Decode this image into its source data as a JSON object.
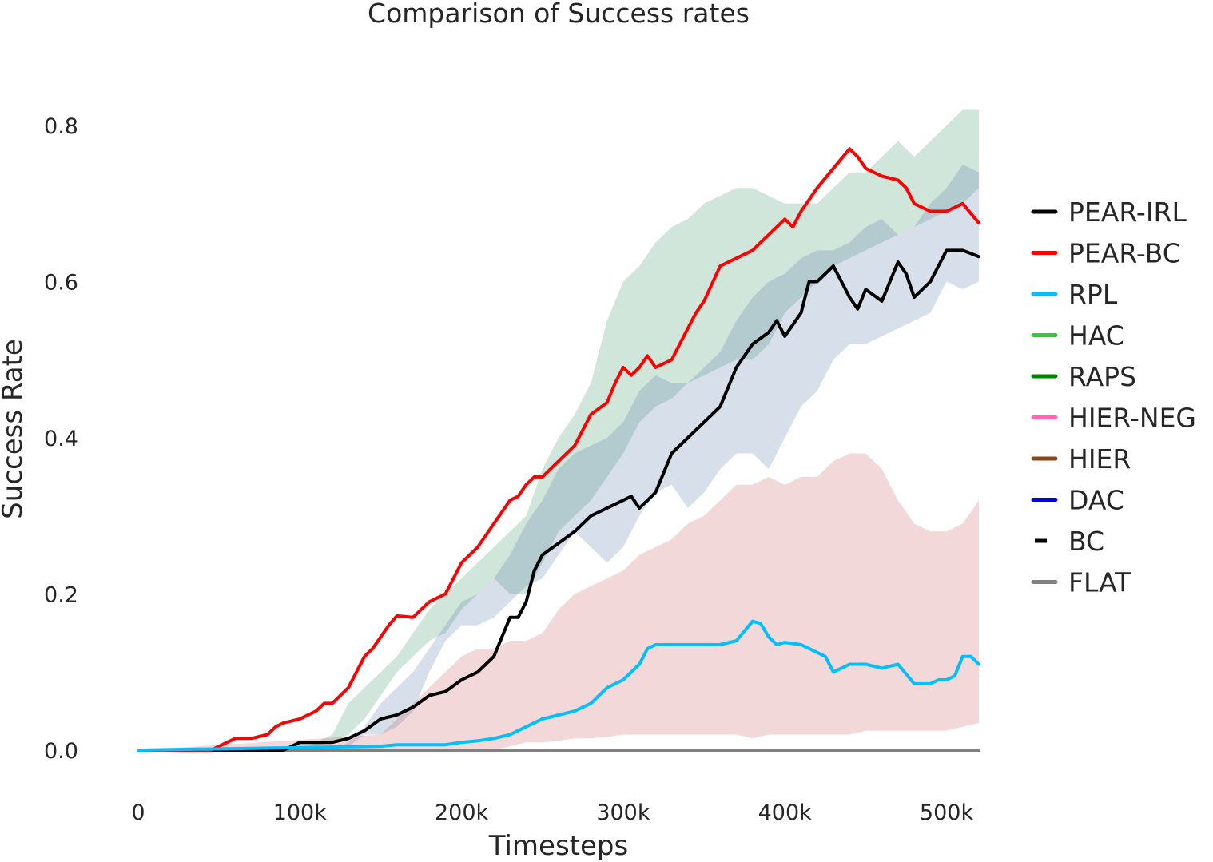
{
  "chart_data": {
    "type": "line",
    "title": "Comparison of Success rates",
    "xlabel": "Timesteps",
    "ylabel": "Success Rate",
    "xlim": [
      0,
      520000
    ],
    "ylim": [
      0,
      0.8
    ],
    "xticks": [
      0,
      100000,
      200000,
      300000,
      400000,
      500000
    ],
    "xtick_labels": [
      "0",
      "100k",
      "200k",
      "300k",
      "400k",
      "500k"
    ],
    "yticks": [
      0,
      0.2,
      0.4,
      0.6,
      0.8
    ],
    "ytick_labels": [
      "0.0",
      "0.2",
      "0.4",
      "0.6",
      "0.8"
    ],
    "grid": false,
    "legend_position": "right",
    "series": [
      {
        "name": "PEAR-IRL",
        "color": "#000000",
        "style": "solid",
        "x": [
          0,
          90000,
          100000,
          120000,
          130000,
          140000,
          150000,
          160000,
          170000,
          180000,
          190000,
          200000,
          210000,
          220000,
          230000,
          235000,
          240000,
          245000,
          250000,
          260000,
          270000,
          280000,
          290000,
          300000,
          305000,
          310000,
          320000,
          330000,
          340000,
          350000,
          360000,
          370000,
          380000,
          390000,
          395000,
          400000,
          410000,
          415000,
          420000,
          425000,
          430000,
          440000,
          445000,
          450000,
          460000,
          470000,
          475000,
          480000,
          490000,
          500000,
          510000,
          520000
        ],
        "y": [
          0,
          0,
          0.01,
          0.01,
          0.015,
          0.025,
          0.04,
          0.045,
          0.055,
          0.07,
          0.075,
          0.09,
          0.1,
          0.12,
          0.17,
          0.17,
          0.19,
          0.23,
          0.25,
          0.265,
          0.28,
          0.3,
          0.31,
          0.32,
          0.325,
          0.31,
          0.33,
          0.38,
          0.4,
          0.42,
          0.44,
          0.49,
          0.52,
          0.535,
          0.55,
          0.53,
          0.56,
          0.6,
          0.6,
          0.61,
          0.62,
          0.58,
          0.565,
          0.59,
          0.575,
          0.625,
          0.61,
          0.58,
          0.6,
          0.64,
          0.64,
          0.632
        ],
        "band_low": [
          0,
          0,
          0,
          0,
          0.005,
          0.02,
          0.02,
          0.03,
          0.05,
          0.1,
          0.14,
          0.16,
          0.16,
          0.17,
          0.18,
          0.2,
          0.22,
          0.22,
          0.24,
          0.26,
          0.29,
          0.25,
          0.23,
          0.25,
          0.26,
          0.3,
          0.34,
          0.34,
          0.3,
          0.33,
          0.34,
          0.38,
          0.38,
          0.36,
          0.38,
          0.44,
          0.46,
          0.46,
          0.5,
          0.52,
          0.51,
          0.51,
          0.53,
          0.52,
          0.54,
          0.55,
          0.56,
          0.55,
          0.56,
          0.6,
          0.59,
          0.6
        ],
        "band_high": [
          0,
          0,
          0.01,
          0.02,
          0.03,
          0.04,
          0.06,
          0.08,
          0.1,
          0.13,
          0.16,
          0.19,
          0.2,
          0.2,
          0.25,
          0.29,
          0.3,
          0.31,
          0.34,
          0.37,
          0.38,
          0.39,
          0.4,
          0.42,
          0.45,
          0.48,
          0.48,
          0.47,
          0.47,
          0.48,
          0.5,
          0.55,
          0.58,
          0.6,
          0.6,
          0.62,
          0.64,
          0.65,
          0.63,
          0.65,
          0.65,
          0.65,
          0.66,
          0.67,
          0.68,
          0.66,
          0.66,
          0.68,
          0.7,
          0.73,
          0.75,
          0.74
        ]
      },
      {
        "name": "PEAR-BC",
        "color": "#ff0000",
        "style": "solid",
        "x": [
          0,
          45000,
          55000,
          60000,
          70000,
          80000,
          85000,
          90000,
          100000,
          110000,
          115000,
          120000,
          130000,
          140000,
          145000,
          150000,
          155000,
          160000,
          170000,
          175000,
          180000,
          190000,
          195000,
          200000,
          210000,
          220000,
          230000,
          235000,
          240000,
          245000,
          250000,
          260000,
          265000,
          270000,
          280000,
          290000,
          295000,
          300000,
          305000,
          310000,
          315000,
          320000,
          330000,
          335000,
          340000,
          345000,
          350000,
          360000,
          370000,
          380000,
          385000,
          390000,
          400000,
          405000,
          410000,
          420000,
          430000,
          440000,
          445000,
          450000,
          460000,
          470000,
          475000,
          480000,
          490000,
          500000,
          510000,
          520000
        ],
        "y": [
          0,
          0,
          0.01,
          0.015,
          0.015,
          0.02,
          0.03,
          0.035,
          0.04,
          0.05,
          0.06,
          0.06,
          0.08,
          0.12,
          0.13,
          0.145,
          0.16,
          0.172,
          0.17,
          0.18,
          0.19,
          0.2,
          0.22,
          0.24,
          0.26,
          0.29,
          0.32,
          0.325,
          0.34,
          0.35,
          0.35,
          0.37,
          0.38,
          0.39,
          0.43,
          0.445,
          0.47,
          0.49,
          0.48,
          0.49,
          0.505,
          0.49,
          0.5,
          0.52,
          0.54,
          0.56,
          0.575,
          0.62,
          0.63,
          0.64,
          0.65,
          0.66,
          0.68,
          0.67,
          0.69,
          0.72,
          0.745,
          0.77,
          0.76,
          0.745,
          0.735,
          0.73,
          0.72,
          0.7,
          0.69,
          0.69,
          0.7,
          0.675
        ],
        "band_low": [
          0,
          0,
          0,
          0,
          0,
          0,
          0,
          0,
          0,
          0,
          0,
          0,
          0,
          0,
          0,
          0,
          0,
          0,
          0,
          0,
          0,
          0,
          0,
          0,
          0,
          0,
          0,
          0,
          0,
          0,
          0,
          0,
          0,
          0,
          0,
          0,
          0,
          0,
          0,
          0,
          0,
          0,
          0,
          0,
          0,
          0,
          0,
          0,
          0,
          0,
          0,
          0,
          0,
          0,
          0,
          0,
          0,
          0,
          0,
          0,
          0,
          0,
          0,
          0,
          0,
          0,
          0,
          0
        ],
        "band_high": [
          0,
          0,
          0,
          0,
          0,
          0,
          0,
          0,
          0,
          0,
          0,
          0,
          0,
          0,
          0,
          0,
          0,
          0,
          0,
          0,
          0,
          0,
          0,
          0,
          0,
          0,
          0,
          0,
          0,
          0,
          0,
          0,
          0,
          0,
          0,
          0,
          0,
          0,
          0,
          0,
          0,
          0,
          0,
          0,
          0,
          0,
          0,
          0,
          0,
          0,
          0,
          0,
          0,
          0,
          0,
          0,
          0,
          0,
          0,
          0,
          0,
          0,
          0,
          0,
          0,
          0,
          0,
          0
        ]
      },
      {
        "name": "RPL",
        "color": "#00bfff",
        "style": "solid",
        "x": [
          0,
          150000,
          160000,
          180000,
          190000,
          200000,
          210000,
          220000,
          230000,
          240000,
          245000,
          250000,
          260000,
          270000,
          280000,
          285000,
          290000,
          300000,
          310000,
          315000,
          320000,
          330000,
          340000,
          350000,
          360000,
          370000,
          380000,
          385000,
          390000,
          395000,
          400000,
          410000,
          420000,
          425000,
          430000,
          440000,
          450000,
          460000,
          470000,
          480000,
          490000,
          495000,
          500000,
          505000,
          510000,
          515000,
          520000
        ],
        "y": [
          0,
          0.005,
          0.007,
          0.007,
          0.007,
          0.01,
          0.012,
          0.015,
          0.02,
          0.03,
          0.035,
          0.04,
          0.045,
          0.05,
          0.06,
          0.07,
          0.08,
          0.09,
          0.11,
          0.13,
          0.135,
          0.135,
          0.135,
          0.135,
          0.135,
          0.14,
          0.165,
          0.162,
          0.145,
          0.135,
          0.138,
          0.135,
          0.125,
          0.12,
          0.1,
          0.11,
          0.11,
          0.105,
          0.11,
          0.085,
          0.085,
          0.09,
          0.09,
          0.095,
          0.12,
          0.12,
          0.11
        ],
        "band_low": [
          0,
          0,
          0,
          0,
          0,
          0,
          0,
          0,
          0,
          0,
          0,
          0,
          0,
          0,
          0,
          0,
          0,
          0,
          0,
          0,
          0,
          0,
          0,
          0,
          0,
          0,
          0,
          0,
          0,
          0,
          0,
          0,
          0,
          0,
          0,
          0,
          0,
          0,
          0,
          0,
          0,
          0,
          0,
          0,
          0,
          0,
          0
        ],
        "band_high": [
          0,
          0,
          0,
          0,
          0,
          0,
          0,
          0,
          0,
          0,
          0,
          0,
          0,
          0,
          0,
          0,
          0,
          0,
          0,
          0,
          0,
          0,
          0,
          0,
          0,
          0,
          0,
          0,
          0,
          0,
          0,
          0,
          0,
          0,
          0,
          0,
          0,
          0,
          0,
          0,
          0,
          0,
          0,
          0,
          0,
          0,
          0
        ]
      },
      {
        "name": "HAC",
        "color": "#32cd32",
        "style": "solid",
        "x": [
          0,
          520000
        ],
        "y": [
          0,
          0
        ]
      },
      {
        "name": "RAPS",
        "color": "#008000",
        "style": "solid",
        "x": [
          0,
          520000
        ],
        "y": [
          0,
          0
        ]
      },
      {
        "name": "HIER-NEG",
        "color": "#ff69b4",
        "style": "solid",
        "x": [
          0,
          520000
        ],
        "y": [
          0,
          0
        ]
      },
      {
        "name": "HIER",
        "color": "#8b4513",
        "style": "solid",
        "x": [
          0,
          520000
        ],
        "y": [
          0,
          0
        ]
      },
      {
        "name": "DAC",
        "color": "#0000ff",
        "style": "solid",
        "x": [
          0,
          520000
        ],
        "y": [
          0,
          0
        ]
      },
      {
        "name": "BC",
        "color": "#000000",
        "style": "dashed",
        "x": [
          0,
          520000
        ],
        "y": [
          0,
          0
        ]
      },
      {
        "name": "FLAT",
        "color": "#808080",
        "style": "solid",
        "x": [
          0,
          520000
        ],
        "y": [
          0,
          0
        ]
      }
    ],
    "bands": [
      {
        "color": "#2e8b57",
        "x": [
          0,
          100000,
          110000,
          120000,
          130000,
          140000,
          150000,
          160000,
          170000,
          180000,
          190000,
          200000,
          210000,
          220000,
          230000,
          240000,
          250000,
          260000,
          270000,
          280000,
          290000,
          300000,
          310000,
          320000,
          330000,
          340000,
          350000,
          360000,
          370000,
          380000,
          390000,
          400000,
          410000,
          420000,
          430000,
          440000,
          450000,
          460000,
          470000,
          480000,
          490000,
          500000,
          510000,
          520000
        ],
        "low": [
          0,
          0,
          0.005,
          0.01,
          0.02,
          0.04,
          0.07,
          0.1,
          0.12,
          0.14,
          0.15,
          0.18,
          0.2,
          0.22,
          0.2,
          0.2,
          0.24,
          0.28,
          0.3,
          0.32,
          0.35,
          0.38,
          0.42,
          0.44,
          0.45,
          0.47,
          0.48,
          0.49,
          0.5,
          0.5,
          0.52,
          0.56,
          0.58,
          0.6,
          0.62,
          0.63,
          0.64,
          0.65,
          0.66,
          0.67,
          0.68,
          0.69,
          0.7,
          0.72
        ],
        "high": [
          0,
          0,
          0.01,
          0.02,
          0.06,
          0.08,
          0.1,
          0.12,
          0.15,
          0.18,
          0.2,
          0.22,
          0.24,
          0.26,
          0.28,
          0.3,
          0.36,
          0.4,
          0.43,
          0.47,
          0.55,
          0.6,
          0.62,
          0.65,
          0.67,
          0.68,
          0.7,
          0.71,
          0.72,
          0.72,
          0.71,
          0.7,
          0.7,
          0.7,
          0.72,
          0.74,
          0.74,
          0.76,
          0.78,
          0.76,
          0.78,
          0.8,
          0.82,
          0.82
        ]
      },
      {
        "color": "#4a6fa5",
        "x": [
          0,
          120000,
          130000,
          140000,
          150000,
          160000,
          170000,
          180000,
          190000,
          200000,
          210000,
          220000,
          230000,
          240000,
          250000,
          260000,
          270000,
          280000,
          290000,
          300000,
          310000,
          320000,
          330000,
          340000,
          350000,
          360000,
          370000,
          380000,
          390000,
          400000,
          410000,
          420000,
          430000,
          440000,
          450000,
          460000,
          470000,
          480000,
          490000,
          500000,
          510000,
          520000
        ],
        "low": [
          0,
          0,
          0.005,
          0.02,
          0.02,
          0.03,
          0.05,
          0.1,
          0.14,
          0.16,
          0.16,
          0.17,
          0.19,
          0.21,
          0.22,
          0.25,
          0.28,
          0.26,
          0.24,
          0.26,
          0.3,
          0.33,
          0.34,
          0.31,
          0.33,
          0.36,
          0.38,
          0.38,
          0.36,
          0.4,
          0.44,
          0.46,
          0.5,
          0.52,
          0.52,
          0.53,
          0.54,
          0.55,
          0.56,
          0.6,
          0.59,
          0.6
        ],
        "high": [
          0,
          0,
          0.01,
          0.03,
          0.06,
          0.08,
          0.1,
          0.13,
          0.16,
          0.19,
          0.2,
          0.22,
          0.25,
          0.29,
          0.32,
          0.36,
          0.38,
          0.39,
          0.4,
          0.42,
          0.46,
          0.48,
          0.47,
          0.47,
          0.49,
          0.51,
          0.55,
          0.58,
          0.6,
          0.61,
          0.63,
          0.64,
          0.64,
          0.65,
          0.67,
          0.68,
          0.66,
          0.67,
          0.7,
          0.72,
          0.75,
          0.74
        ]
      },
      {
        "color": "#c44e52",
        "x": [
          0,
          150000,
          160000,
          170000,
          180000,
          190000,
          200000,
          210000,
          220000,
          230000,
          240000,
          250000,
          260000,
          270000,
          280000,
          290000,
          300000,
          310000,
          320000,
          330000,
          340000,
          350000,
          360000,
          370000,
          380000,
          390000,
          400000,
          410000,
          420000,
          430000,
          440000,
          450000,
          460000,
          470000,
          480000,
          490000,
          500000,
          510000,
          520000
        ],
        "low": [
          0,
          0,
          0,
          0,
          0,
          0,
          0,
          0,
          0,
          0.005,
          0.01,
          0.01,
          0.012,
          0.015,
          0.015,
          0.017,
          0.02,
          0.02,
          0.02,
          0.02,
          0.02,
          0.02,
          0.02,
          0.02,
          0.015,
          0.02,
          0.02,
          0.02,
          0.02,
          0.02,
          0.02,
          0.025,
          0.025,
          0.025,
          0.025,
          0.025,
          0.025,
          0.03,
          0.035
        ],
        "high": [
          0,
          0.02,
          0.04,
          0.06,
          0.08,
          0.1,
          0.12,
          0.13,
          0.13,
          0.14,
          0.14,
          0.15,
          0.18,
          0.2,
          0.21,
          0.22,
          0.23,
          0.25,
          0.26,
          0.27,
          0.29,
          0.3,
          0.32,
          0.34,
          0.34,
          0.35,
          0.34,
          0.35,
          0.35,
          0.37,
          0.38,
          0.38,
          0.36,
          0.32,
          0.29,
          0.28,
          0.28,
          0.29,
          0.32
        ]
      }
    ]
  }
}
